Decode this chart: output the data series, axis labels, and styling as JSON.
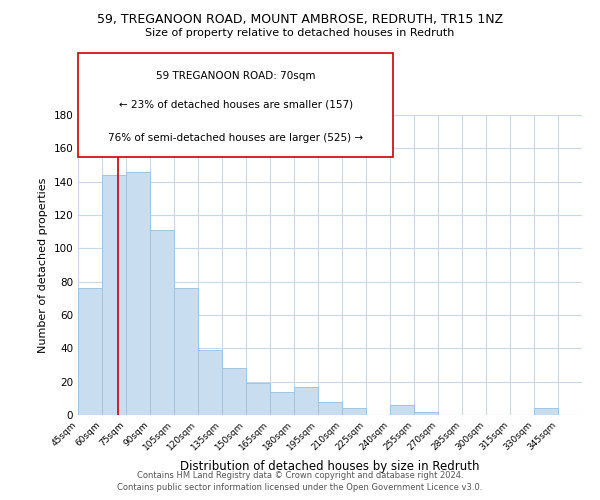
{
  "title": "59, TREGANOON ROAD, MOUNT AMBROSE, REDRUTH, TR15 1NZ",
  "subtitle": "Size of property relative to detached houses in Redruth",
  "xlabel": "Distribution of detached houses by size in Redruth",
  "ylabel": "Number of detached properties",
  "bar_color": "#c8ddf0",
  "bar_edge_color": "#a0c4e0",
  "bin_edges": [
    45,
    60,
    75,
    90,
    105,
    120,
    135,
    150,
    165,
    180,
    195,
    210,
    225,
    240,
    255,
    270,
    285,
    300,
    315,
    330,
    345,
    360
  ],
  "counts": [
    76,
    144,
    146,
    111,
    76,
    39,
    28,
    19,
    14,
    17,
    8,
    4,
    0,
    6,
    2,
    0,
    0,
    0,
    0,
    4,
    0
  ],
  "tick_labels": [
    "45sqm",
    "60sqm",
    "75sqm",
    "90sqm",
    "105sqm",
    "120sqm",
    "135sqm",
    "150sqm",
    "165sqm",
    "180sqm",
    "195sqm",
    "210sqm",
    "225sqm",
    "240sqm",
    "255sqm",
    "270sqm",
    "285sqm",
    "300sqm",
    "315sqm",
    "330sqm",
    "345sqm"
  ],
  "ylim": [
    0,
    180
  ],
  "yticks": [
    0,
    20,
    40,
    60,
    80,
    100,
    120,
    140,
    160,
    180
  ],
  "property_line_x": 70,
  "property_line_color": "#cc0000",
  "ann_line1": "59 TREGANOON ROAD: 70sqm",
  "ann_line2": "← 23% of detached houses are smaller (157)",
  "ann_line3": "76% of semi-detached houses are larger (525) →",
  "footer_line1": "Contains HM Land Registry data © Crown copyright and database right 2024.",
  "footer_line2": "Contains public sector information licensed under the Open Government Licence v3.0.",
  "background_color": "#ffffff",
  "grid_color": "#c8d8e8"
}
